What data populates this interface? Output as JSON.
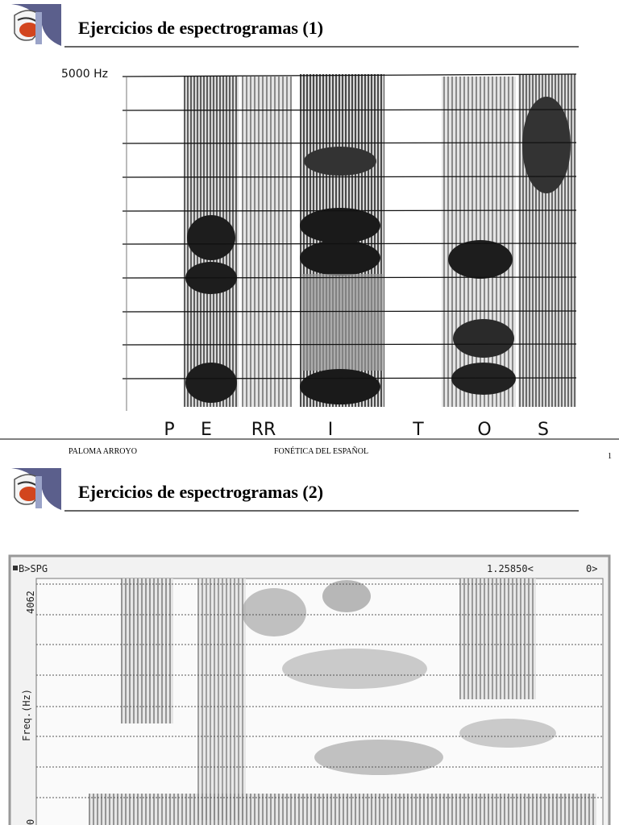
{
  "slides": [
    {
      "title": "Ejercicios de espectrogramas (1)",
      "figure": {
        "frequency_label": "5000 Hz",
        "segments": [
          "P",
          "E",
          "RR",
          "I",
          "T",
          "O",
          "S"
        ]
      },
      "footer": {
        "author": "PALOMA ARROYO",
        "course": "FONÉTICA DEL ESPAÑOL",
        "page": "1"
      }
    },
    {
      "title": "Ejercicios de espectrogramas (2)",
      "figure": {
        "mode": "B>SPG",
        "time": "1.25850<",
        "channel": "0>",
        "max_frequency": "4062",
        "axis_label": "Freq.(Hz)",
        "min_frequency": "0"
      }
    }
  ]
}
